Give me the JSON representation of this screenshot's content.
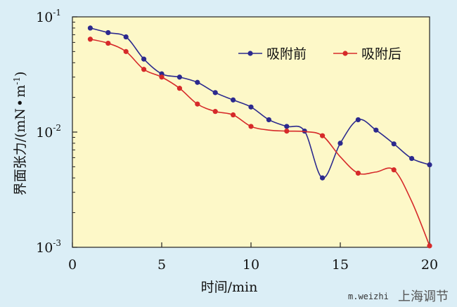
{
  "chart_data": {
    "type": "line",
    "title": "",
    "xlabel": "时间/min",
    "ylabel": "界面张力/(mN·m⁻¹)",
    "ylabel_parts": {
      "main": "界面张力/(mN",
      "dot": "•",
      "unit": "m",
      "exp": "-1",
      "close": ")"
    },
    "xlim": [
      0,
      20
    ],
    "ylim": [
      0.001,
      0.1
    ],
    "yscale": "log",
    "xticks": [
      0,
      5,
      10,
      15,
      20
    ],
    "xtick_labels": [
      "0",
      "5",
      "10",
      "15",
      "20"
    ],
    "yticks": [
      0.001,
      0.01,
      0.1
    ],
    "ytick_labels": [
      {
        "base": "10",
        "exp": "-3"
      },
      {
        "base": "10",
        "exp": "-2"
      },
      {
        "base": "10",
        "exp": "-1"
      }
    ],
    "grid": false,
    "legend_position": "top-right",
    "plot_background": "#fdf8c8",
    "series": [
      {
        "name": "吸附前",
        "color": "#2c2a8e",
        "x": [
          1,
          2,
          3,
          4,
          5,
          6,
          7,
          8,
          9,
          10,
          11,
          12,
          13,
          14,
          15,
          16,
          17,
          18,
          19,
          20
        ],
        "y": [
          0.08,
          0.073,
          0.067,
          0.043,
          0.032,
          0.03,
          0.027,
          0.022,
          0.019,
          0.0165,
          0.0128,
          0.0112,
          0.0102,
          0.004,
          0.008,
          0.0128,
          0.0104,
          0.0079,
          0.0059,
          0.0052
        ]
      },
      {
        "name": "吸附后",
        "color": "#d62a2a",
        "x": [
          1,
          2,
          3,
          4,
          5,
          6,
          7,
          8,
          9,
          10,
          11,
          12,
          13,
          14,
          15,
          16,
          17,
          18,
          19,
          20
        ],
        "y": [
          0.064,
          0.059,
          0.05,
          0.035,
          0.03,
          0.024,
          0.0175,
          0.0151,
          0.0141,
          0.0112,
          0.0104,
          0.0102,
          0.0101,
          0.0093,
          0.0061,
          0.0044,
          0.0045,
          0.0047,
          0.0025,
          0.00103
        ],
        "marker_indices": [
          0,
          1,
          2,
          3,
          4,
          5,
          6,
          7,
          8,
          9,
          11,
          13,
          15,
          17,
          19
        ]
      }
    ]
  },
  "watermark": {
    "url_text": "m.weizhi",
    "brand_text": "上海调节"
  }
}
